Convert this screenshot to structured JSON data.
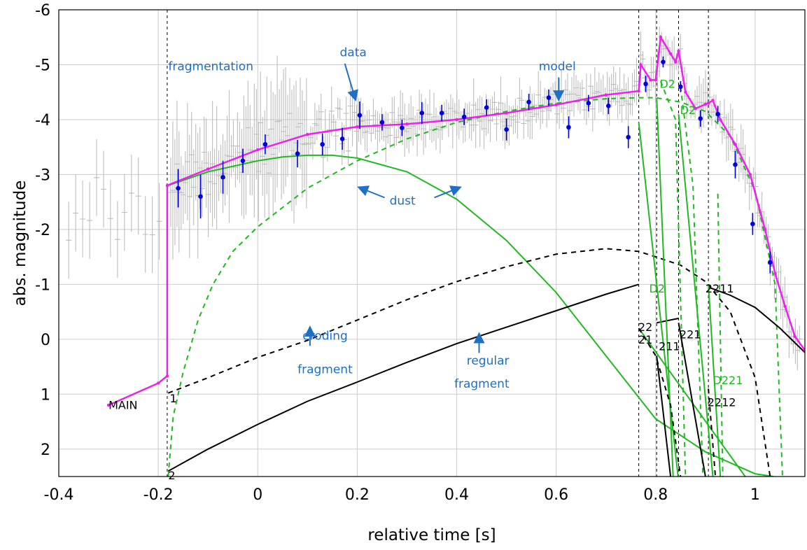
{
  "chart_data": {
    "type": "line",
    "xlabel": "relative time [s]",
    "ylabel": "abs. magnitude",
    "xlim": [
      -0.4,
      1.1
    ],
    "ylim": [
      2.5,
      -6
    ],
    "y_inverted": true,
    "grid": true,
    "x_ticks": [
      -0.4,
      -0.2,
      0,
      0.2,
      0.4,
      0.6,
      0.8,
      1
    ],
    "x_tick_labels": [
      "-0.4",
      "-0.2",
      "0",
      "0.2",
      "0.4",
      "0.6",
      "0.8",
      "1"
    ],
    "y_ticks": [
      -6,
      -5,
      -4,
      -3,
      -2,
      -1,
      0,
      1,
      2
    ],
    "y_tick_labels": [
      "-6",
      "-5",
      "-4",
      "-3",
      "-2",
      "-1",
      "0",
      "1",
      "2"
    ],
    "vlines": [
      -0.182,
      0.766,
      0.802,
      0.846,
      0.906
    ],
    "annotations": {
      "blue": [
        {
          "text": "fragmentation",
          "x": -0.18,
          "y": -4.9
        },
        {
          "text": "data",
          "x": 0.165,
          "y": -5.15
        },
        {
          "text": "model",
          "x": 0.565,
          "y": -4.9
        },
        {
          "text": "dust",
          "x": 0.265,
          "y": -2.45
        },
        {
          "text": "eroding",
          "x": 0.09,
          "y": 0.01
        },
        {
          "text": "fragment",
          "x": 0.08,
          "y": 0.62
        },
        {
          "text": "regular",
          "x": 0.42,
          "y": 0.46
        },
        {
          "text": "fragment",
          "x": 0.395,
          "y": 0.88
        }
      ],
      "black": [
        {
          "text": "MAIN",
          "x": -0.3,
          "y": 1.27
        },
        {
          "text": "1",
          "x": -0.177,
          "y": 1.15
        },
        {
          "text": "2",
          "x": -0.18,
          "y": 2.55
        },
        {
          "text": "22",
          "x": 0.765,
          "y": -0.15
        },
        {
          "text": "21",
          "x": 0.765,
          "y": 0.08
        },
        {
          "text": "211",
          "x": 0.806,
          "y": 0.2
        },
        {
          "text": "221",
          "x": 0.848,
          "y": -0.02
        },
        {
          "text": "2211",
          "x": 0.9,
          "y": -0.85
        },
        {
          "text": "2212",
          "x": 0.904,
          "y": 1.22
        }
      ],
      "green": [
        {
          "text": "D2",
          "x": 0.808,
          "y": -4.58
        },
        {
          "text": "D2",
          "x": 0.849,
          "y": -4.1
        },
        {
          "text": "D2",
          "x": 0.787,
          "y": -0.85
        },
        {
          "text": "D221",
          "x": 0.915,
          "y": 0.82
        }
      ]
    },
    "arrows": [
      {
        "from": [
          0.175,
          -5.02
        ],
        "to": [
          0.196,
          -4.38
        ]
      },
      {
        "from": [
          0.605,
          -4.77
        ],
        "to": [
          0.605,
          -4.38
        ]
      },
      {
        "from": [
          0.255,
          -2.58
        ],
        "to": [
          0.205,
          -2.76
        ]
      },
      {
        "from": [
          0.355,
          -2.58
        ],
        "to": [
          0.405,
          -2.76
        ]
      },
      {
        "from": [
          0.105,
          0.12
        ],
        "to": [
          0.105,
          -0.2
        ]
      },
      {
        "from": [
          0.445,
          0.25
        ],
        "to": [
          0.445,
          -0.08
        ]
      }
    ],
    "series": [
      {
        "name": "data",
        "kind": "points_with_errors",
        "color": "#0000dd",
        "x": [
          -0.16,
          -0.115,
          -0.07,
          -0.03,
          0.015,
          0.08,
          0.13,
          0.17,
          0.205,
          0.25,
          0.29,
          0.33,
          0.37,
          0.415,
          0.46,
          0.5,
          0.545,
          0.585,
          0.625,
          0.665,
          0.705,
          0.745,
          0.78,
          0.815,
          0.85,
          0.89,
          0.925,
          0.96,
          0.995,
          1.03
        ],
        "y": [
          -2.75,
          -2.6,
          -2.95,
          -3.25,
          -3.55,
          -3.38,
          -3.55,
          -3.65,
          -4.08,
          -3.95,
          -3.85,
          -4.12,
          -4.12,
          -4.05,
          -4.22,
          -3.82,
          -4.32,
          -4.4,
          -3.86,
          -4.3,
          -4.25,
          -3.68,
          -4.65,
          -5.05,
          -4.6,
          -4.02,
          -4.1,
          -3.18,
          -2.1,
          -1.4
        ],
        "yerr": [
          0.35,
          0.4,
          0.3,
          0.22,
          0.18,
          0.25,
          0.2,
          0.2,
          0.25,
          0.15,
          0.15,
          0.2,
          0.15,
          0.15,
          0.15,
          0.2,
          0.15,
          0.15,
          0.2,
          0.15,
          0.15,
          0.2,
          0.15,
          0.1,
          0.1,
          0.15,
          0.15,
          0.25,
          0.2,
          0.2
        ]
      },
      {
        "name": "model",
        "color": "#ee20ee",
        "x": [
          -0.3,
          -0.2,
          -0.182,
          -0.182,
          -0.1,
          0,
          0.1,
          0.2,
          0.3,
          0.4,
          0.5,
          0.6,
          0.7,
          0.766,
          0.77,
          0.79,
          0.8,
          0.81,
          0.83,
          0.84,
          0.846,
          0.86,
          0.88,
          0.9,
          0.906,
          0.915,
          0.93,
          0.96,
          0.99,
          1.02,
          1.04,
          1.06,
          1.08,
          1.1
        ],
        "y": [
          1.2,
          0.8,
          0.67,
          -2.8,
          -3.1,
          -3.45,
          -3.73,
          -3.87,
          -3.92,
          -4.0,
          -4.12,
          -4.27,
          -4.45,
          -4.52,
          -5.0,
          -4.72,
          -4.72,
          -5.5,
          -5.2,
          -5.05,
          -5.25,
          -4.5,
          -4.2,
          -4.28,
          -4.3,
          -4.35,
          -4.0,
          -3.55,
          -3.0,
          -2.0,
          -1.2,
          -0.6,
          -0.05,
          0.2
        ]
      },
      {
        "name": "dust",
        "dashed": true,
        "color": "#22b822",
        "x": [
          -0.18,
          -0.17,
          -0.15,
          -0.12,
          -0.09,
          -0.05,
          0,
          0.05,
          0.1,
          0.2,
          0.3,
          0.4,
          0.5,
          0.6,
          0.7,
          0.766
        ],
        "y": [
          2.5,
          1.4,
          0.6,
          -0.35,
          -1.0,
          -1.6,
          -2.05,
          -2.4,
          -2.75,
          -3.25,
          -3.65,
          -3.95,
          -4.15,
          -4.3,
          -4.38,
          -4.4
        ]
      },
      {
        "name": "",
        "dashed": true,
        "color": "#22b822",
        "x": [
          0.766,
          0.8,
          0.85,
          0.9,
          0.95,
          1.0,
          1.04,
          1.055
        ],
        "y": [
          -4.4,
          -4.4,
          -4.32,
          -4.15,
          -3.7,
          -2.7,
          -1.0,
          2.5
        ]
      },
      {
        "name": "",
        "dashed": false,
        "color": "#22b822",
        "x": [
          -0.18,
          -0.1,
          0,
          0.05,
          0.1,
          0.15,
          0.2,
          0.3,
          0.4,
          0.5,
          0.6,
          0.7,
          0.8,
          0.9,
          1.0,
          1.037
        ],
        "y": [
          -2.8,
          -3.05,
          -3.25,
          -3.32,
          -3.35,
          -3.35,
          -3.3,
          -3.05,
          -2.55,
          -1.8,
          -0.85,
          0.3,
          1.45,
          2.05,
          2.45,
          2.5
        ]
      },
      {
        "name": "",
        "dashed": true,
        "color": "#000000",
        "x": [
          -0.18,
          -0.1,
          0,
          0.1,
          0.2,
          0.3,
          0.4,
          0.5,
          0.6,
          0.7,
          0.766,
          0.8,
          0.85,
          0.9,
          0.95,
          1.0,
          1.03
        ],
        "y": [
          0.98,
          0.7,
          0.33,
          0.02,
          -0.35,
          -0.72,
          -1.05,
          -1.32,
          -1.55,
          -1.65,
          -1.6,
          -1.5,
          -1.35,
          -1.05,
          -0.5,
          0.7,
          2.5
        ]
      },
      {
        "name": "",
        "dashed": false,
        "color": "#000000",
        "x": [
          -0.18,
          -0.1,
          0,
          0.1,
          0.2,
          0.3,
          0.4,
          0.5,
          0.6,
          0.7,
          0.766
        ],
        "y": [
          2.4,
          2.0,
          1.55,
          1.13,
          0.78,
          0.42,
          0.08,
          -0.22,
          -0.52,
          -0.82,
          -1.0
        ]
      },
      {
        "name": "",
        "dashed": false,
        "color": "#000000",
        "x": [
          0.906,
          0.95,
          1.0,
          1.05,
          1.1
        ],
        "y": [
          -0.95,
          -0.8,
          -0.58,
          -0.2,
          0.24
        ]
      },
      {
        "name": "",
        "dashed": false,
        "color": "#000000",
        "x": [
          0.802,
          0.846
        ],
        "y": [
          -0.3,
          -0.38
        ]
      }
    ],
    "decay_lines": [
      {
        "color": "#22b822",
        "dashed": false,
        "x": [
          0.766,
          0.845
        ],
        "y": [
          -3.95,
          2.5
        ]
      },
      {
        "color": "#22b822",
        "dashed": false,
        "x": [
          0.802,
          0.835
        ],
        "y": [
          -4.4,
          2.5
        ]
      },
      {
        "color": "#22b822",
        "dashed": false,
        "x": [
          0.846,
          0.915
        ],
        "y": [
          -4.1,
          2.5
        ]
      },
      {
        "color": "#22b822",
        "dashed": false,
        "x": [
          0.906,
          0.93
        ],
        "y": [
          -1.0,
          2.5
        ]
      },
      {
        "color": "#22b822",
        "dashed": false,
        "x": [
          0.766,
          0.98
        ],
        "y": [
          -0.2,
          2.5
        ]
      },
      {
        "color": "#22b822",
        "dashed": true,
        "x": [
          0.81,
          0.84,
          0.86
        ],
        "y": [
          -4.7,
          -4.0,
          2.5
        ]
      },
      {
        "color": "#22b822",
        "dashed": true,
        "x": [
          0.85,
          0.875,
          0.895
        ],
        "y": [
          -4.6,
          -2.8,
          2.5
        ]
      },
      {
        "color": "#22b822",
        "dashed": true,
        "x": [
          0.925,
          0.93,
          0.935
        ],
        "y": [
          -2.65,
          0,
          2.5
        ]
      },
      {
        "color": "#000000",
        "dashed": true,
        "x": [
          0.766,
          0.8,
          0.83,
          0.85
        ],
        "y": [
          -0.2,
          0.3,
          1.2,
          2.5
        ]
      },
      {
        "color": "#000000",
        "dashed": false,
        "x": [
          0.802,
          0.83
        ],
        "y": [
          0.3,
          2.5
        ]
      },
      {
        "color": "#000000",
        "dashed": false,
        "x": [
          0.846,
          0.9
        ],
        "y": [
          -0.3,
          2.5
        ]
      },
      {
        "color": "#000000",
        "dashed": true,
        "x": [
          0.906,
          0.92
        ],
        "y": [
          0.9,
          2.5
        ]
      }
    ]
  }
}
